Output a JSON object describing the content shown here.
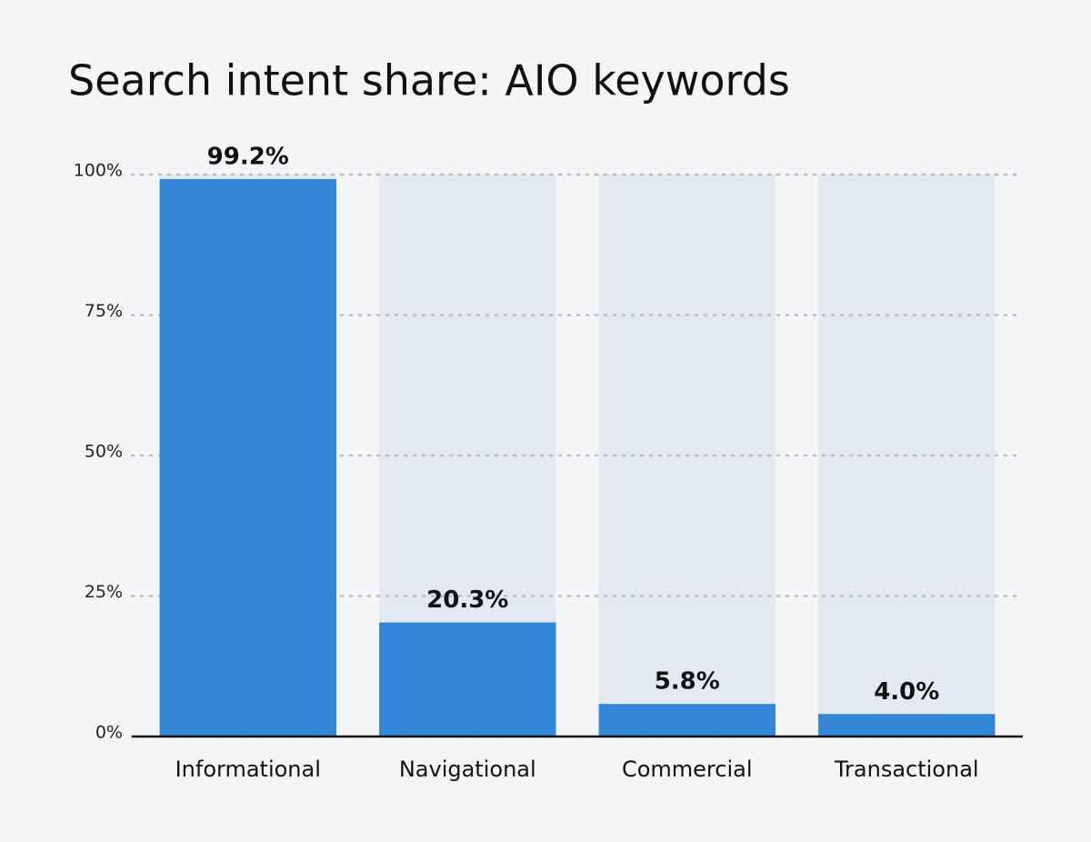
{
  "chart_data": {
    "type": "bar",
    "title": "Search intent share: AIO keywords",
    "categories": [
      "Informational",
      "Navigational",
      "Commercial",
      "Transactional"
    ],
    "values": [
      99.2,
      20.3,
      5.8,
      4.0
    ],
    "value_labels": [
      "99.2%",
      "20.3%",
      "5.8%",
      "4.0%"
    ],
    "color": "#3386d6",
    "track_color": "#e2e9f3",
    "ylim": [
      0,
      100
    ],
    "yticks": [
      {
        "value": 0,
        "label": "0%"
      },
      {
        "value": 25,
        "label": "25%"
      },
      {
        "value": 50,
        "label": "50%"
      },
      {
        "value": 75,
        "label": "75%"
      },
      {
        "value": 100,
        "label": "100%"
      }
    ],
    "grid": true
  }
}
